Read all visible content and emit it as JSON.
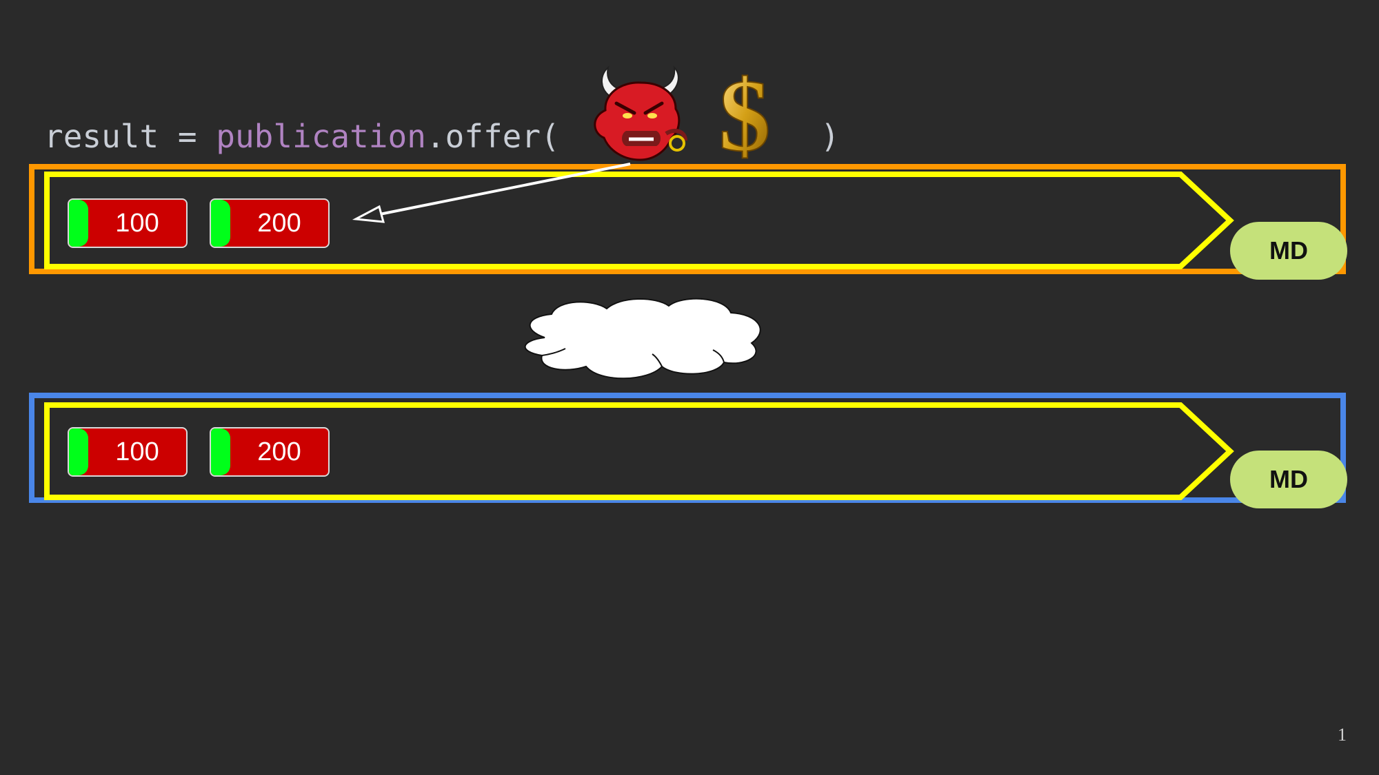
{
  "code": {
    "prefix": "result = ",
    "object": "publication",
    "method": ".offer(",
    "close": ")"
  },
  "icons": {
    "bull": "bull-icon",
    "dollar": "dollar-icon",
    "cloud": "cloud-icon"
  },
  "publisher": {
    "border_color": "#ff9800",
    "messages": [
      {
        "value": "100"
      },
      {
        "value": "200"
      }
    ],
    "badge": "MD"
  },
  "subscriber": {
    "border_color": "#4a86e8",
    "messages": [
      {
        "value": "100"
      },
      {
        "value": "200"
      }
    ],
    "badge": "MD"
  },
  "colors": {
    "background": "#2a2a2a",
    "log_outline": "#ffff00",
    "message_body": "#cc0000",
    "message_header": "#00ff1a",
    "badge": "#c5e17a"
  },
  "slide_number": "1"
}
